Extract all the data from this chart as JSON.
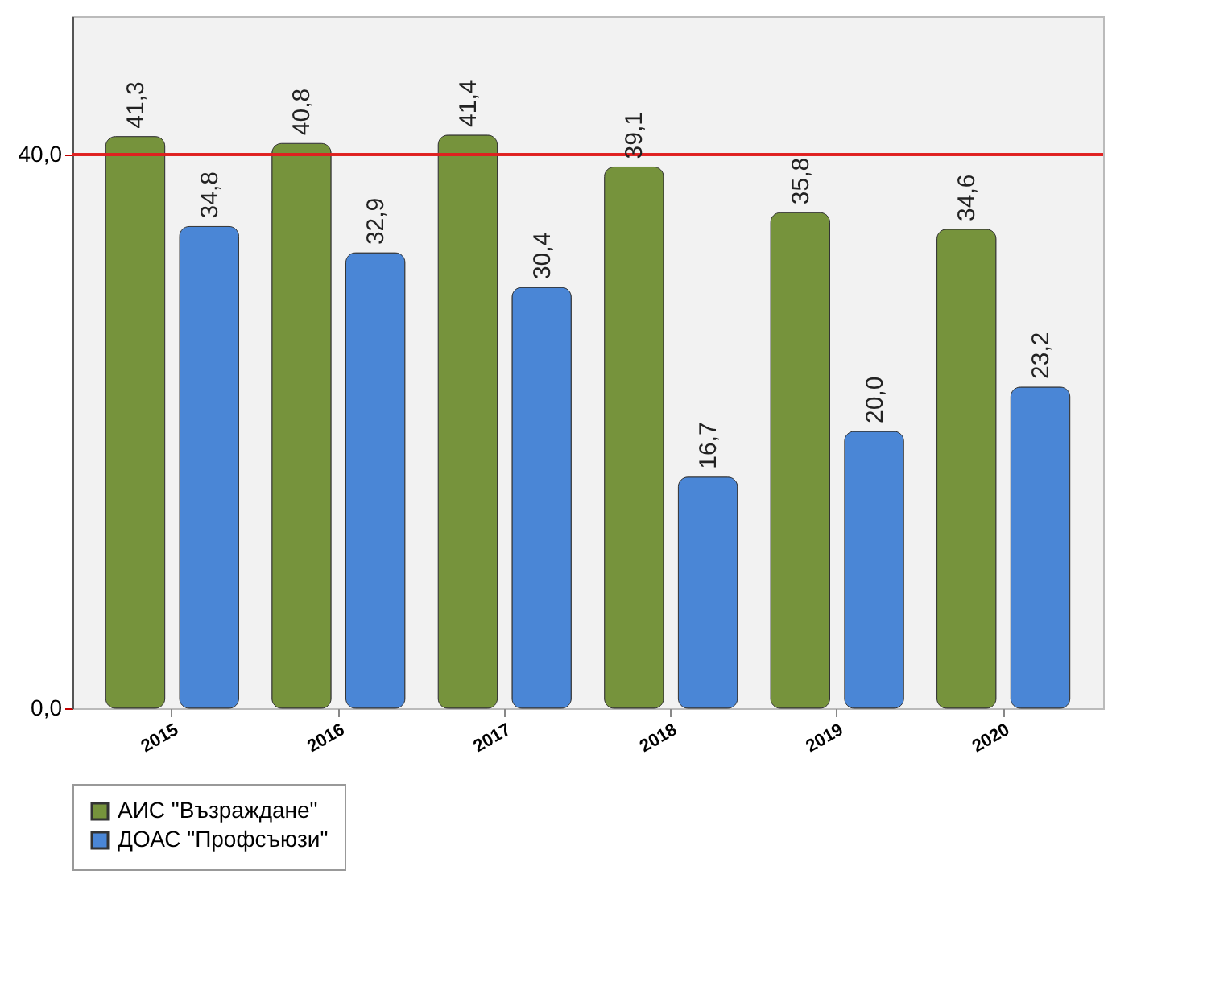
{
  "chart_data": {
    "type": "bar",
    "categories": [
      "2015",
      "2016",
      "2017",
      "2018",
      "2019",
      "2020"
    ],
    "series": [
      {
        "name": "АИС \"Възраждане\"",
        "color": "#76933c",
        "values": [
          41.3,
          40.8,
          41.4,
          39.1,
          35.8,
          34.6
        ],
        "value_labels": [
          "41,3",
          "40,8",
          "41,4",
          "39,1",
          "35,8",
          "34,6"
        ]
      },
      {
        "name": "ДОАС \"Профсъюзи\"",
        "color": "#4a86d6",
        "values": [
          34.8,
          32.9,
          30.4,
          16.7,
          20.0,
          23.2
        ],
        "value_labels": [
          "34,8",
          "32,9",
          "30,4",
          "16,7",
          "20,0",
          "23,2"
        ]
      }
    ],
    "ylim": [
      0,
      50
    ],
    "yticks": [
      {
        "value": 0,
        "label": "0,0"
      },
      {
        "value": 40,
        "label": "40,0"
      }
    ],
    "ref_lines": [
      {
        "axis": "y",
        "value": 40,
        "color": "#e02020"
      }
    ],
    "legend": "bottom"
  }
}
